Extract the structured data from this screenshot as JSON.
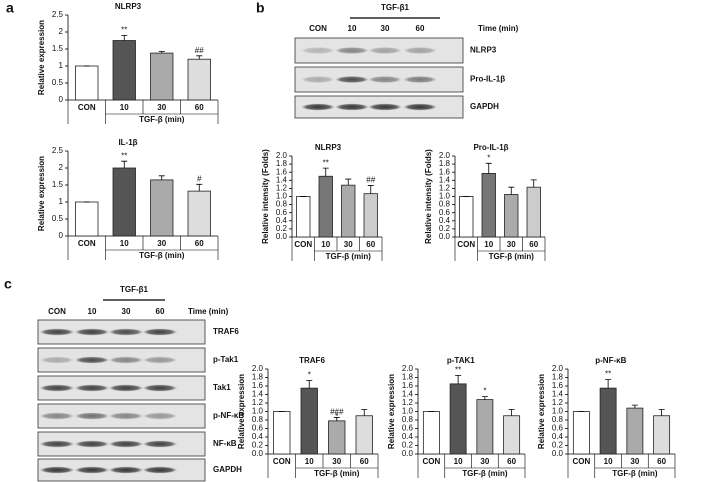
{
  "panels": [
    "a",
    "b",
    "c"
  ],
  "blots": [
    {
      "header": "TGF-β1",
      "lanes": [
        "CON",
        "10",
        "30",
        "60"
      ],
      "time_label": "Time (min)",
      "bands": [
        "NLRP3",
        "Pro-IL-1β",
        "GAPDH"
      ]
    },
    {
      "header": "TGF-β1",
      "lanes": [
        "CON",
        "10",
        "30",
        "60"
      ],
      "time_label": "Time (min)",
      "bands": [
        "TRAF6",
        "p-Tak1",
        "Tak1",
        "p-NF-κB",
        "NF-κB",
        "GAPDH"
      ]
    }
  ],
  "chart_data": [
    {
      "type": "bar",
      "title": "NLRP3",
      "y_label": "Relative expression",
      "group_label": "TGF-β (min)",
      "categories": [
        "CON",
        "10",
        "30",
        "60"
      ],
      "values": [
        1,
        1.75,
        1.38,
        1.2
      ],
      "errors": [
        0,
        0.15,
        0.05,
        0.1
      ],
      "significance": [
        null,
        [
          "**"
        ],
        null,
        [
          "##"
        ]
      ],
      "colors": [
        "#ffffff",
        "#555555",
        "#aaaaaa",
        "#dddddd"
      ],
      "ylim": [
        0,
        2.5
      ],
      "yticks": [
        0,
        0.5,
        1,
        1.5,
        2,
        2.5
      ]
    },
    {
      "type": "bar",
      "title": "IL-1β",
      "y_label": "Relative expression",
      "group_label": "TGF-β (min)",
      "categories": [
        "CON",
        "10",
        "30",
        "60"
      ],
      "values": [
        1,
        2.0,
        1.65,
        1.32
      ],
      "errors": [
        0,
        0.2,
        0.12,
        0.2
      ],
      "significance": [
        null,
        [
          "**"
        ],
        null,
        [
          "#"
        ]
      ],
      "colors": [
        "#ffffff",
        "#555555",
        "#aaaaaa",
        "#dddddd"
      ],
      "ylim": [
        0,
        2.5
      ],
      "yticks": [
        0,
        0.5,
        1,
        1.5,
        2,
        2.5
      ]
    },
    {
      "type": "bar",
      "title": "NLRP3",
      "y_label": "Relative intensity (Folds)",
      "group_label": "TGF-β (min)",
      "categories": [
        "CON",
        "10",
        "30",
        "60"
      ],
      "values": [
        1,
        1.5,
        1.28,
        1.07
      ],
      "errors": [
        0,
        0.2,
        0.15,
        0.2
      ],
      "significance": [
        null,
        [
          "**"
        ],
        null,
        [
          "##"
        ]
      ],
      "colors": [
        "#ffffff",
        "#777777",
        "#aaaaaa",
        "#cccccc"
      ],
      "ylim": [
        0,
        2
      ],
      "yticks": [
        {
          "value": 0,
          "label": "0.0"
        },
        0.2,
        0.4,
        0.6,
        0.8,
        {
          "value": 1,
          "label": "1.0"
        },
        1.2,
        1.4,
        1.6,
        1.8,
        {
          "value": 2,
          "label": "2.0"
        }
      ]
    },
    {
      "type": "bar",
      "title": "Pro-IL-1β",
      "y_label": "Relative intensity (Folds)",
      "group_label": "TGF-β (min)",
      "categories": [
        "CON",
        "10",
        "30",
        "60"
      ],
      "values": [
        1,
        1.57,
        1.05,
        1.23
      ],
      "errors": [
        0,
        0.25,
        0.18,
        0.18
      ],
      "significance": [
        null,
        [
          "*"
        ],
        null,
        null
      ],
      "colors": [
        "#ffffff",
        "#777777",
        "#aaaaaa",
        "#cccccc"
      ],
      "ylim": [
        0,
        2
      ],
      "yticks": [
        {
          "value": 0,
          "label": "0.0"
        },
        0.2,
        0.4,
        0.6,
        0.8,
        {
          "value": 1,
          "label": "1.0"
        },
        1.2,
        1.4,
        1.6,
        1.8,
        {
          "value": 2,
          "label": "2.0"
        }
      ]
    },
    {
      "type": "bar",
      "title": "TRAF6",
      "y_label": "Relative expression",
      "group_label": "TGF-β (min)",
      "categories": [
        "CON",
        "10",
        "30",
        "60"
      ],
      "values": [
        1,
        1.55,
        0.78,
        0.9
      ],
      "errors": [
        0,
        0.18,
        0.08,
        0.15
      ],
      "significance": [
        null,
        [
          "*"
        ],
        [
          "###",
          "*"
        ],
        null
      ],
      "colors": [
        "#ffffff",
        "#555555",
        "#aaaaaa",
        "#dddddd"
      ],
      "ylim": [
        0,
        2
      ],
      "yticks": [
        {
          "value": 0,
          "label": "0.0"
        },
        0.2,
        0.4,
        0.6,
        0.8,
        {
          "value": 1,
          "label": "1.0"
        },
        1.2,
        1.4,
        1.6,
        1.8,
        {
          "value": 2,
          "label": "2.0"
        }
      ]
    },
    {
      "type": "bar",
      "title": "p-TAK1",
      "y_label": "Relative expression",
      "group_label": "TGF-β (min)",
      "categories": [
        "CON",
        "10",
        "30",
        "60"
      ],
      "values": [
        1,
        1.65,
        1.28,
        0.9
      ],
      "errors": [
        0,
        0.2,
        0.07,
        0.15
      ],
      "significance": [
        null,
        [
          "**"
        ],
        [
          "*"
        ],
        null
      ],
      "colors": [
        "#ffffff",
        "#555555",
        "#aaaaaa",
        "#dddddd"
      ],
      "ylim": [
        0,
        2
      ],
      "yticks": [
        {
          "value": 0,
          "label": "0.0"
        },
        0.2,
        0.4,
        0.6,
        0.8,
        {
          "value": 1,
          "label": "1.0"
        },
        1.2,
        1.4,
        1.6,
        1.8,
        {
          "value": 2,
          "label": "2.0"
        }
      ]
    },
    {
      "type": "bar",
      "title": "p-NF-κB",
      "y_label": "Relative expression",
      "group_label": "TGF-β (min)",
      "categories": [
        "CON",
        "10",
        "30",
        "60"
      ],
      "values": [
        1,
        1.55,
        1.08,
        0.9
      ],
      "errors": [
        0,
        0.2,
        0.07,
        0.15
      ],
      "significance": [
        null,
        [
          "**"
        ],
        null,
        null
      ],
      "colors": [
        "#ffffff",
        "#555555",
        "#aaaaaa",
        "#dddddd"
      ],
      "ylim": [
        0,
        2
      ],
      "yticks": [
        {
          "value": 0,
          "label": "0.0"
        },
        0.2,
        0.4,
        0.6,
        0.8,
        {
          "value": 1,
          "label": "1.0"
        },
        1.2,
        1.4,
        1.6,
        1.8,
        {
          "value": 2,
          "label": "2.0"
        }
      ]
    }
  ]
}
